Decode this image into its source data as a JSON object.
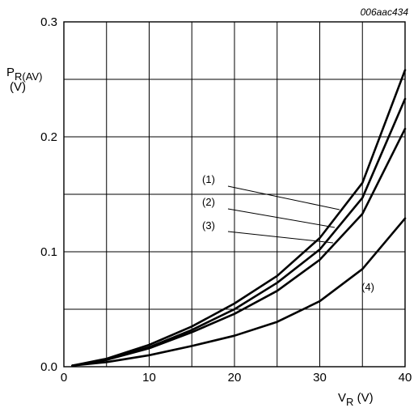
{
  "chart_data": {
    "type": "line",
    "figure_code": "006aac434",
    "ylabel_main": "P",
    "ylabel_sub": "R(AV)",
    "ylabel_unit": "(V)",
    "xlabel_main": "V",
    "xlabel_sub": "R",
    "xlabel_unit": " (V)",
    "xlim": [
      0,
      40
    ],
    "ylim": [
      0,
      0.3
    ],
    "xticks": [
      "0",
      "10",
      "20",
      "30",
      "40"
    ],
    "yticks": [
      "0.0",
      "0.1",
      "0.2",
      "0.3"
    ],
    "grid": true,
    "series": [
      {
        "name": "(1)",
        "x": [
          1,
          5,
          10,
          15,
          20,
          25,
          30,
          35,
          40
        ],
        "y": [
          0.001,
          0.007,
          0.019,
          0.035,
          0.055,
          0.079,
          0.112,
          0.16,
          0.258
        ]
      },
      {
        "name": "(2)",
        "x": [
          1,
          5,
          10,
          15,
          20,
          25,
          30,
          35,
          40
        ],
        "y": [
          0.001,
          0.006,
          0.017,
          0.032,
          0.05,
          0.073,
          0.102,
          0.147,
          0.233
        ]
      },
      {
        "name": "(3)",
        "x": [
          1,
          5,
          10,
          15,
          20,
          25,
          30,
          35,
          40
        ],
        "y": [
          0.001,
          0.006,
          0.016,
          0.03,
          0.046,
          0.066,
          0.093,
          0.133,
          0.207
        ]
      },
      {
        "name": "(4)",
        "x": [
          1,
          5,
          10,
          15,
          20,
          25,
          30,
          35,
          40
        ],
        "y": [
          0.001,
          0.004,
          0.01,
          0.018,
          0.027,
          0.039,
          0.057,
          0.085,
          0.129
        ]
      }
    ]
  }
}
